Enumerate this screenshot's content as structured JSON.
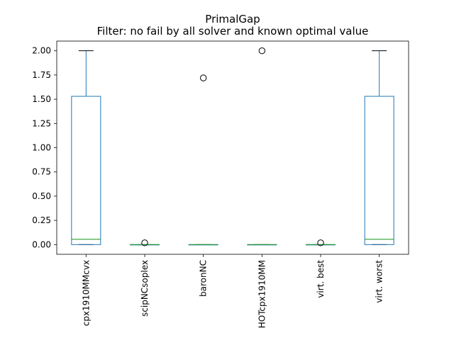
{
  "chart_data": {
    "type": "box",
    "title": "PrimalGap",
    "subtitle": "Filter: no fail by all solver and known optimal value",
    "xlabel": "",
    "ylabel": "",
    "ylim": [
      -0.1,
      2.1
    ],
    "yticks": [
      "0.00",
      "0.25",
      "0.50",
      "0.75",
      "1.00",
      "1.25",
      "1.50",
      "1.75",
      "2.00"
    ],
    "grid": false,
    "colors": {
      "box": "#1f77b4",
      "median": "#2ca02c",
      "whisker_cap": "#000000",
      "flier": "#000000"
    },
    "categories": [
      "cpx1910MMcvx",
      "scipNCsoplex",
      "baronNC",
      "HOTcpx1910MM",
      "virt. best",
      "virt. worst"
    ],
    "boxes": [
      {
        "name": "cpx1910MMcvx",
        "whislo": 0.0,
        "q1": 0.0,
        "med": 0.055,
        "q3": 1.53,
        "whishi": 2.0,
        "fliers": []
      },
      {
        "name": "scipNCsoplex",
        "whislo": 0.0,
        "q1": 0.0,
        "med": 0.0,
        "q3": 0.0,
        "whishi": 0.0,
        "fliers": [
          0.018
        ]
      },
      {
        "name": "baronNC",
        "whislo": 0.0,
        "q1": 0.0,
        "med": 0.0,
        "q3": 0.0,
        "whishi": 0.0,
        "fliers": [
          1.72
        ]
      },
      {
        "name": "HOTcpx1910MM",
        "whislo": 0.0,
        "q1": 0.0,
        "med": 0.0,
        "q3": 0.0,
        "whishi": 0.0,
        "fliers": [
          2.0
        ]
      },
      {
        "name": "virt. best",
        "whislo": 0.0,
        "q1": 0.0,
        "med": 0.0,
        "q3": 0.0,
        "whishi": 0.0,
        "fliers": [
          0.018
        ]
      },
      {
        "name": "virt. worst",
        "whislo": 0.0,
        "q1": 0.0,
        "med": 0.055,
        "q3": 1.53,
        "whishi": 2.0,
        "fliers": []
      }
    ]
  }
}
